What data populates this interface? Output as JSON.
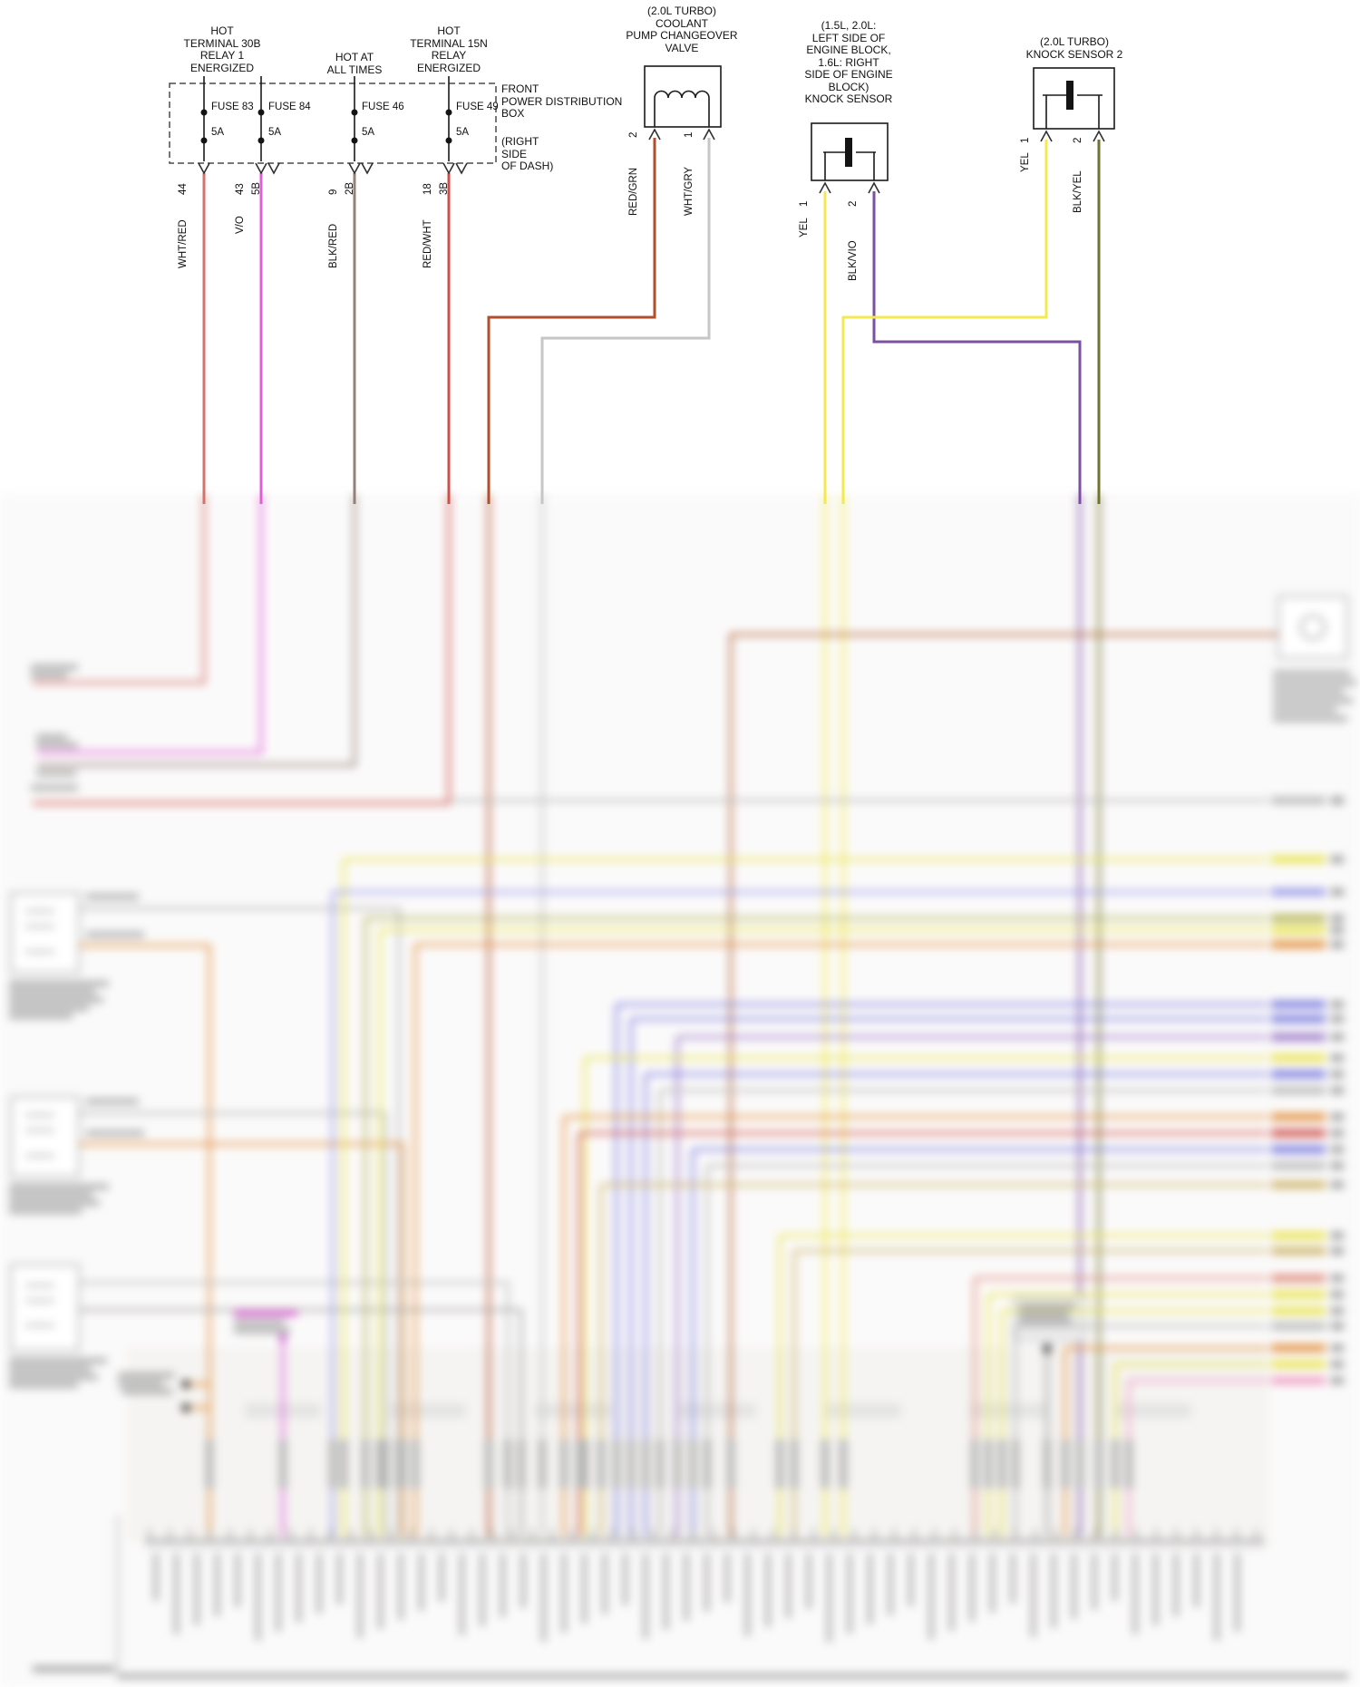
{
  "header": {
    "src_relay1": "HOT\nTERMINAL 30B\nRELAY 1\nENERGIZED",
    "src_hot_all": "HOT AT\nALL TIMES",
    "src_relay15n": "HOT\nTERMINAL 15N\nRELAY\nENERGIZED",
    "pdb_label": "FRONT\nPOWER DISTRIBUTION\nBOX",
    "pdb_sub": "(RIGHT\nSIDE\nOF DASH)"
  },
  "fuses": [
    {
      "name": "FUSE 83",
      "rating": "5A",
      "circuit": "44",
      "wire": "WHT/RED",
      "connector": ""
    },
    {
      "name": "FUSE 84",
      "rating": "5A",
      "circuit": "43",
      "wire": "V/O",
      "connector": "5B"
    },
    {
      "name": "FUSE 46",
      "rating": "5A",
      "circuit": "9",
      "wire": "BLK/RED",
      "connector": "2B"
    },
    {
      "name": "FUSE 49",
      "rating": "5A",
      "circuit": "18",
      "wire": "RED/WHT",
      "connector": "3B"
    }
  ],
  "components": {
    "valve": {
      "title": "(2.0L TURBO)\nCOOLANT\nPUMP CHANGEOVER\nVALVE",
      "pin2": "2",
      "pin2_wire": "RED/GRN",
      "pin1": "1",
      "pin1_wire": "WHT/GRY"
    },
    "knock1": {
      "title": "(1.5L, 2.0L:\nLEFT SIDE OF\nENGINE BLOCK,\n1.6L: RIGHT\nSIDE OF ENGINE\nBLOCK)\nKNOCK SENSOR",
      "pin1": "1",
      "pin1_wire": "YEL",
      "pin2": "2",
      "pin2_wire": "BLK/VIO"
    },
    "knock2": {
      "title": "(2.0L TURBO)\nKNOCK SENSOR 2",
      "pin1": "1",
      "pin1_wire": "YEL",
      "pin2": "2",
      "pin2_wire": "BLK/YEL"
    }
  },
  "colors": {
    "wht_red": "#d4736e",
    "v_o": "#e05fd8",
    "blk_red": "#95807a",
    "red_wht": "#cf4f4a",
    "red_grn": "#b24e2a",
    "wht_gry": "#c6c6c6",
    "yel": "#f2ea50",
    "blk_vio": "#7c4fa3",
    "blk_yel": "#72722e"
  }
}
